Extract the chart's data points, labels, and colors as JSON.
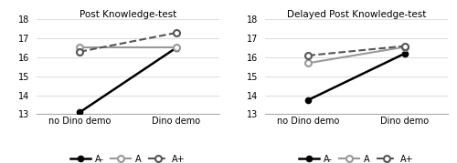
{
  "left_title": "Post Knowledge-test",
  "right_title": "Delayed Post Knowledge-test",
  "x_labels": [
    "no Dino demo",
    "Dino demo"
  ],
  "x_positions": [
    0,
    1
  ],
  "ylim": [
    13,
    18
  ],
  "yticks": [
    13,
    14,
    15,
    16,
    17,
    18
  ],
  "left": {
    "A_minus": [
      13.1,
      16.5
    ],
    "A": [
      16.55,
      16.55
    ],
    "A_plus": [
      16.3,
      17.3
    ]
  },
  "right": {
    "A_minus": [
      13.75,
      16.2
    ],
    "A": [
      15.7,
      16.55
    ],
    "A_plus": [
      16.1,
      16.6
    ]
  },
  "colors": {
    "A_minus": "#000000",
    "A": "#999999",
    "A_plus": "#555555"
  },
  "background_color": "#ffffff"
}
